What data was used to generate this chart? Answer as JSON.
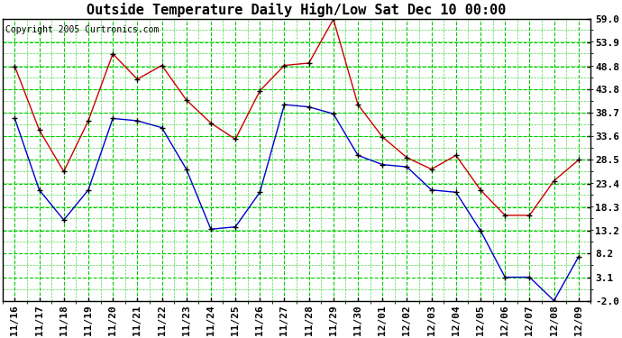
{
  "title": "Outside Temperature Daily High/Low Sat Dec 10 00:00",
  "copyright": "Copyright 2005 Curtronics.com",
  "x_labels": [
    "11/16",
    "11/17",
    "11/18",
    "11/19",
    "11/20",
    "11/21",
    "11/22",
    "11/23",
    "11/24",
    "11/25",
    "11/26",
    "11/27",
    "11/28",
    "11/29",
    "11/30",
    "12/01",
    "12/02",
    "12/03",
    "12/04",
    "12/05",
    "12/06",
    "12/07",
    "12/08",
    "12/09"
  ],
  "high_values": [
    48.8,
    35.0,
    26.0,
    37.0,
    51.5,
    46.0,
    49.0,
    41.5,
    36.5,
    33.0,
    43.5,
    49.0,
    49.5,
    59.0,
    40.5,
    33.5,
    29.0,
    26.5,
    29.5,
    22.0,
    16.5,
    16.5,
    24.0,
    28.5
  ],
  "low_values": [
    37.5,
    22.0,
    15.5,
    22.0,
    37.5,
    37.0,
    35.5,
    26.5,
    13.5,
    14.0,
    21.5,
    40.5,
    40.0,
    38.5,
    29.5,
    27.5,
    27.0,
    22.0,
    21.5,
    13.2,
    3.1,
    3.1,
    -2.0,
    7.5
  ],
  "high_color": "#cc0000",
  "low_color": "#0000cc",
  "marker_color": "#000000",
  "bg_color": "#ffffff",
  "grid_color": "#00cc00",
  "border_color": "#000000",
  "title_fontsize": 11,
  "copyright_fontsize": 7,
  "tick_fontsize": 8,
  "ylim": [
    -2.0,
    59.0
  ],
  "yticks": [
    -2.0,
    3.1,
    8.2,
    13.2,
    18.3,
    23.4,
    28.5,
    33.6,
    38.7,
    43.8,
    48.8,
    53.9,
    59.0
  ]
}
